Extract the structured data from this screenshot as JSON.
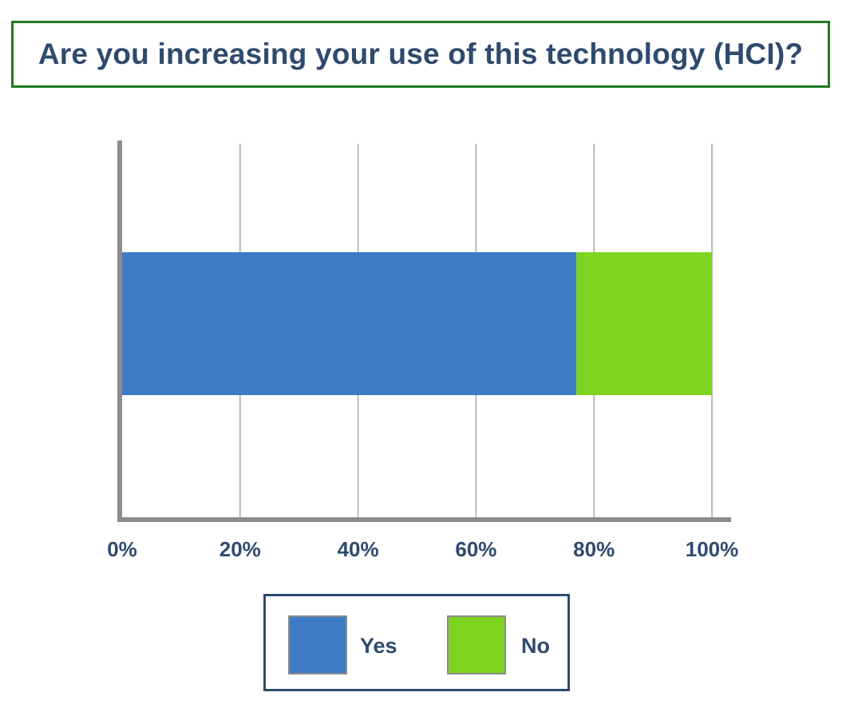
{
  "chart_data": {
    "type": "bar",
    "orientation": "horizontal",
    "stacked": true,
    "title": "Are you increasing your use of this technology (HCI)?",
    "categories": [
      ""
    ],
    "series": [
      {
        "name": "Yes",
        "values": [
          77
        ],
        "color": "#3d7bc4"
      },
      {
        "name": "No",
        "values": [
          23
        ],
        "color": "#7ed321"
      }
    ],
    "x_ticks": [
      "0%",
      "20%",
      "40%",
      "60%",
      "80%",
      "100%"
    ],
    "x_tick_values": [
      0,
      20,
      40,
      60,
      80,
      100
    ],
    "xlim": [
      0,
      100
    ],
    "grid": true,
    "legend_position": "bottom"
  }
}
